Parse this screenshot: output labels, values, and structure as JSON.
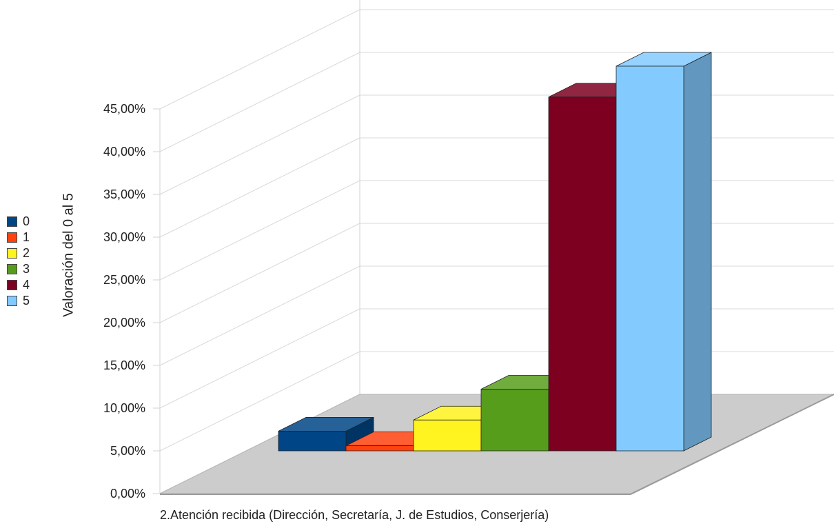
{
  "chart_data": {
    "type": "bar",
    "title": "",
    "xlabel": "2.Atención recibida (Dirección, Secretaría, J. de Estudios, Conserjería)",
    "ylabel": "Valoración del 0 al 5",
    "ylim": [
      0,
      45
    ],
    "yticks": [
      "0,00%",
      "5,00%",
      "10,00%",
      "15,00%",
      "20,00%",
      "25,00%",
      "30,00%",
      "35,00%",
      "40,00%",
      "45,00%"
    ],
    "legend_position": "left",
    "categories": [
      "2.Atención recibida (Dirección, Secretaría, J. de Estudios, Conserjería)"
    ],
    "series": [
      {
        "name": "0",
        "values": [
          2.3
        ],
        "color": "#004586"
      },
      {
        "name": "1",
        "values": [
          0.6
        ],
        "color": "#FF420E"
      },
      {
        "name": "2",
        "values": [
          3.6
        ],
        "color": "#FFF320"
      },
      {
        "name": "3",
        "values": [
          7.2
        ],
        "color": "#579D1C"
      },
      {
        "name": "4",
        "values": [
          41.3
        ],
        "color": "#7E0021"
      },
      {
        "name": "5",
        "values": [
          44.9
        ],
        "color": "#83CAFF"
      }
    ]
  }
}
